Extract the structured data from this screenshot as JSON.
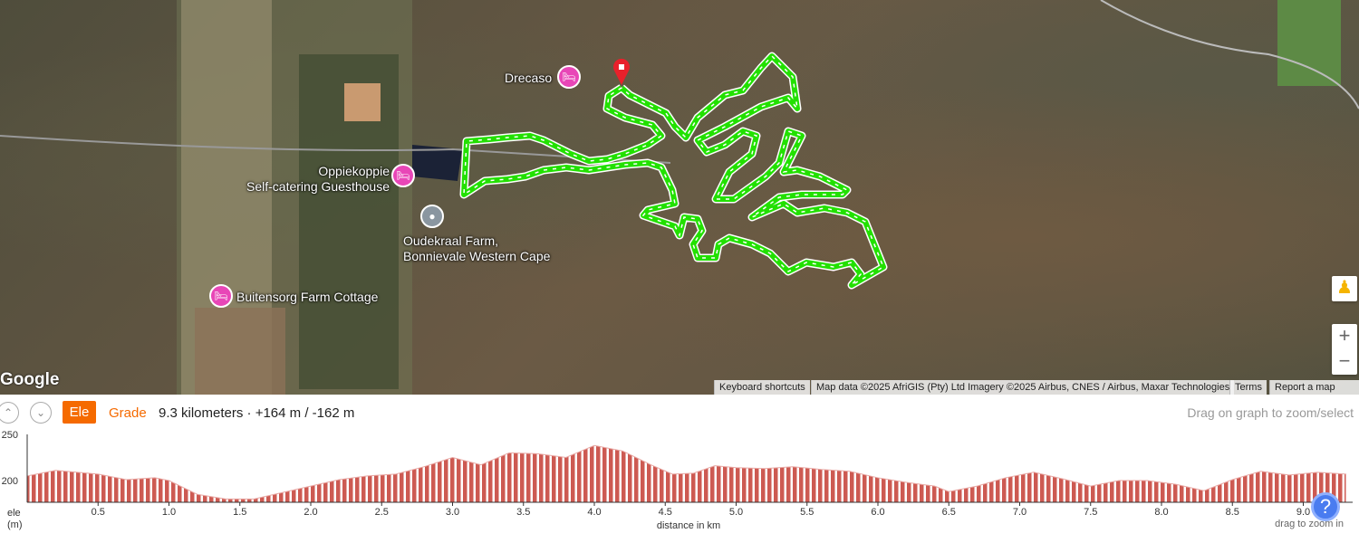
{
  "map": {
    "places": [
      {
        "name": "Drecaso",
        "icon": "hotel-icon"
      },
      {
        "name": "Oppiekoppie\nSelf-catering Guesthouse",
        "icon": "hotel-icon"
      },
      {
        "name": "Oudekraal Farm,\nBonnievale Western Cape",
        "icon": "place-icon"
      },
      {
        "name": "Buitensorg Farm Cottage",
        "icon": "hotel-icon"
      }
    ],
    "logo": "Google",
    "attribution": {
      "shortcuts": "Keyboard shortcuts",
      "data": "Map data ©2025 AfriGIS (Pty) Ltd Imagery ©2025 Airbus, CNES / Airbus, Maxar Technologies",
      "terms": "Terms",
      "report": "Report a map error"
    },
    "zoom_in": "+",
    "zoom_out": "−",
    "route_color": "#22e000"
  },
  "profile": {
    "ele_label": "Ele",
    "grade_label": "Grade",
    "stats": "9.3 kilometers · +164 m / -162 m",
    "hint": "Drag on graph to zoom/select",
    "accent": "#f56a00"
  },
  "chart_data": {
    "type": "area",
    "xlabel": "distance in km",
    "ylabel": "ele\n(m)",
    "footnote": "drag to zoom in",
    "xlim": [
      0,
      9.3
    ],
    "ylim": [
      176,
      250
    ],
    "xticks": [
      "0.5",
      "1.0",
      "1.5",
      "2.0",
      "2.5",
      "3.0",
      "3.5",
      "4.0",
      "4.5",
      "5.0",
      "5.5",
      "6.0",
      "6.5",
      "7.0",
      "7.5",
      "8.0",
      "8.5",
      "9.0"
    ],
    "yticks": [
      "250",
      "200"
    ],
    "x": [
      0,
      0.2,
      0.5,
      0.7,
      0.9,
      1.0,
      1.2,
      1.4,
      1.6,
      1.8,
      2.0,
      2.2,
      2.4,
      2.6,
      2.8,
      3.0,
      3.2,
      3.4,
      3.6,
      3.8,
      4.0,
      4.2,
      4.4,
      4.55,
      4.7,
      4.85,
      5.0,
      5.2,
      5.4,
      5.6,
      5.8,
      6.0,
      6.2,
      6.4,
      6.5,
      6.7,
      6.9,
      7.1,
      7.3,
      7.5,
      7.7,
      7.9,
      8.1,
      8.3,
      8.5,
      8.7,
      8.9,
      9.1,
      9.3
    ],
    "y": [
      205,
      211,
      207,
      201,
      203,
      200,
      185,
      180,
      180,
      187,
      194,
      201,
      205,
      207,
      215,
      225,
      217,
      230,
      229,
      225,
      238,
      232,
      217,
      207,
      208,
      216,
      214,
      213,
      215,
      212,
      210,
      203,
      198,
      194,
      188,
      194,
      203,
      209,
      202,
      194,
      200,
      200,
      196,
      189,
      201,
      210,
      206,
      209,
      207
    ],
    "color": "#cd5a52"
  }
}
